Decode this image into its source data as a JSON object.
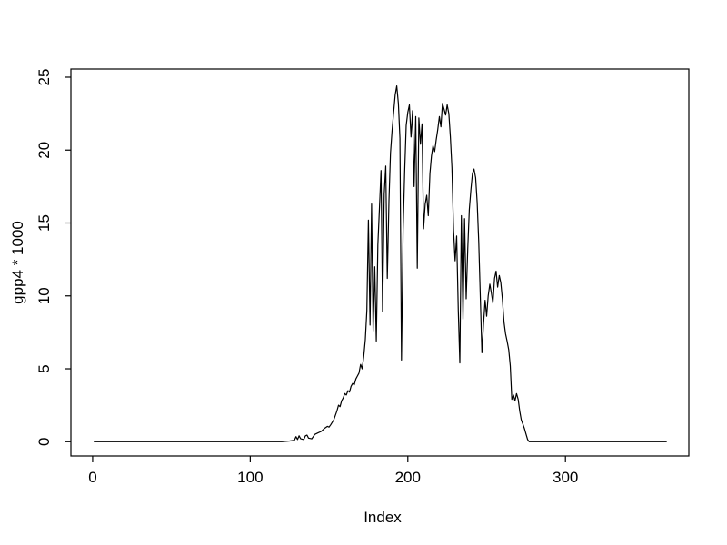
{
  "window": {
    "background_color": "#ffffff",
    "foreground_color": "#000000"
  },
  "chart_data": {
    "type": "line",
    "title": "",
    "xlabel": "Index",
    "ylabel": "gpp4 * 1000",
    "x_ticks": [
      0,
      100,
      200,
      300
    ],
    "y_ticks": [
      0,
      5,
      10,
      15,
      20,
      25
    ],
    "xlim": [
      -13.8,
      378.3
    ],
    "ylim": [
      -0.98,
      25.56
    ],
    "grid": false,
    "legend": null,
    "line_color": "#000000",
    "series_name": "gpp4 * 1000",
    "points": [
      [
        1,
        0
      ],
      [
        120,
        0
      ],
      [
        125,
        0.05
      ],
      [
        128,
        0.1
      ],
      [
        129,
        0.35
      ],
      [
        130,
        0.15
      ],
      [
        131,
        0.4
      ],
      [
        132,
        0.2
      ],
      [
        134,
        0.15
      ],
      [
        135,
        0.4
      ],
      [
        136,
        0.45
      ],
      [
        137,
        0.25
      ],
      [
        139,
        0.2
      ],
      [
        141,
        0.5
      ],
      [
        143,
        0.6
      ],
      [
        145,
        0.7
      ],
      [
        147,
        0.9
      ],
      [
        149,
        1.05
      ],
      [
        150,
        1.0
      ],
      [
        151,
        1.15
      ],
      [
        153,
        1.5
      ],
      [
        155,
        2.1
      ],
      [
        156,
        2.5
      ],
      [
        157,
        2.4
      ],
      [
        158,
        2.8
      ],
      [
        159,
        3.0
      ],
      [
        160,
        3.3
      ],
      [
        161,
        3.2
      ],
      [
        162,
        3.5
      ],
      [
        163,
        3.4
      ],
      [
        164,
        3.8
      ],
      [
        165,
        4.0
      ],
      [
        166,
        3.9
      ],
      [
        167,
        4.3
      ],
      [
        168,
        4.5
      ],
      [
        169,
        4.7
      ],
      [
        170,
        5.3
      ],
      [
        171,
        5.0
      ],
      [
        172,
        5.8
      ],
      [
        173,
        7.0
      ],
      [
        174,
        9.0
      ],
      [
        175,
        15.2
      ],
      [
        176,
        8.0
      ],
      [
        177,
        16.3
      ],
      [
        178,
        7.6
      ],
      [
        179,
        12.0
      ],
      [
        180,
        6.9
      ],
      [
        181,
        13.5
      ],
      [
        182,
        16.1
      ],
      [
        183,
        18.6
      ],
      [
        184,
        8.9
      ],
      [
        185,
        17.0
      ],
      [
        186,
        18.9
      ],
      [
        187,
        11.2
      ],
      [
        188,
        16.5
      ],
      [
        189,
        19.8
      ],
      [
        190,
        21.3
      ],
      [
        191,
        22.6
      ],
      [
        192,
        23.8
      ],
      [
        193,
        24.4
      ],
      [
        194,
        23.2
      ],
      [
        195,
        20.8
      ],
      [
        196,
        5.6
      ],
      [
        197,
        14.5
      ],
      [
        198,
        18.5
      ],
      [
        199,
        21.7
      ],
      [
        200,
        22.6
      ],
      [
        201,
        23.1
      ],
      [
        202,
        20.9
      ],
      [
        203,
        22.7
      ],
      [
        204,
        17.5
      ],
      [
        205,
        22.3
      ],
      [
        206,
        11.9
      ],
      [
        207,
        22.2
      ],
      [
        208,
        20.4
      ],
      [
        209,
        21.8
      ],
      [
        210,
        14.6
      ],
      [
        211,
        16.3
      ],
      [
        212,
        16.9
      ],
      [
        213,
        15.5
      ],
      [
        214,
        18.4
      ],
      [
        215,
        19.6
      ],
      [
        216,
        20.3
      ],
      [
        217,
        19.9
      ],
      [
        218,
        20.7
      ],
      [
        219,
        21.4
      ],
      [
        220,
        22.3
      ],
      [
        221,
        21.6
      ],
      [
        222,
        23.2
      ],
      [
        223,
        22.8
      ],
      [
        224,
        22.4
      ],
      [
        225,
        23.1
      ],
      [
        226,
        22.5
      ],
      [
        227,
        20.9
      ],
      [
        228,
        18.8
      ],
      [
        229,
        14.5
      ],
      [
        230,
        12.4
      ],
      [
        231,
        14.1
      ],
      [
        232,
        9.0
      ],
      [
        233,
        5.4
      ],
      [
        234,
        15.5
      ],
      [
        235,
        8.4
      ],
      [
        236,
        15.3
      ],
      [
        237,
        9.8
      ],
      [
        238,
        13.2
      ],
      [
        239,
        15.9
      ],
      [
        240,
        17.3
      ],
      [
        241,
        18.4
      ],
      [
        242,
        18.7
      ],
      [
        243,
        18.1
      ],
      [
        244,
        16.4
      ],
      [
        245,
        13.7
      ],
      [
        246,
        9.8
      ],
      [
        247,
        6.1
      ],
      [
        248,
        8.0
      ],
      [
        249,
        9.7
      ],
      [
        250,
        8.6
      ],
      [
        251,
        10.0
      ],
      [
        252,
        10.8
      ],
      [
        253,
        10.2
      ],
      [
        254,
        9.5
      ],
      [
        255,
        11.2
      ],
      [
        256,
        11.7
      ],
      [
        257,
        10.6
      ],
      [
        258,
        11.4
      ],
      [
        259,
        10.9
      ],
      [
        260,
        9.8
      ],
      [
        261,
        8.2
      ],
      [
        262,
        7.4
      ],
      [
        263,
        6.9
      ],
      [
        264,
        6.3
      ],
      [
        265,
        5.2
      ],
      [
        266,
        2.9
      ],
      [
        267,
        3.2
      ],
      [
        268,
        2.8
      ],
      [
        269,
        3.3
      ],
      [
        270,
        2.9
      ],
      [
        271,
        2.1
      ],
      [
        272,
        1.5
      ],
      [
        273,
        1.2
      ],
      [
        274,
        0.9
      ],
      [
        275,
        0.5
      ],
      [
        276,
        0.15
      ],
      [
        277,
        0
      ],
      [
        364,
        0
      ]
    ]
  }
}
